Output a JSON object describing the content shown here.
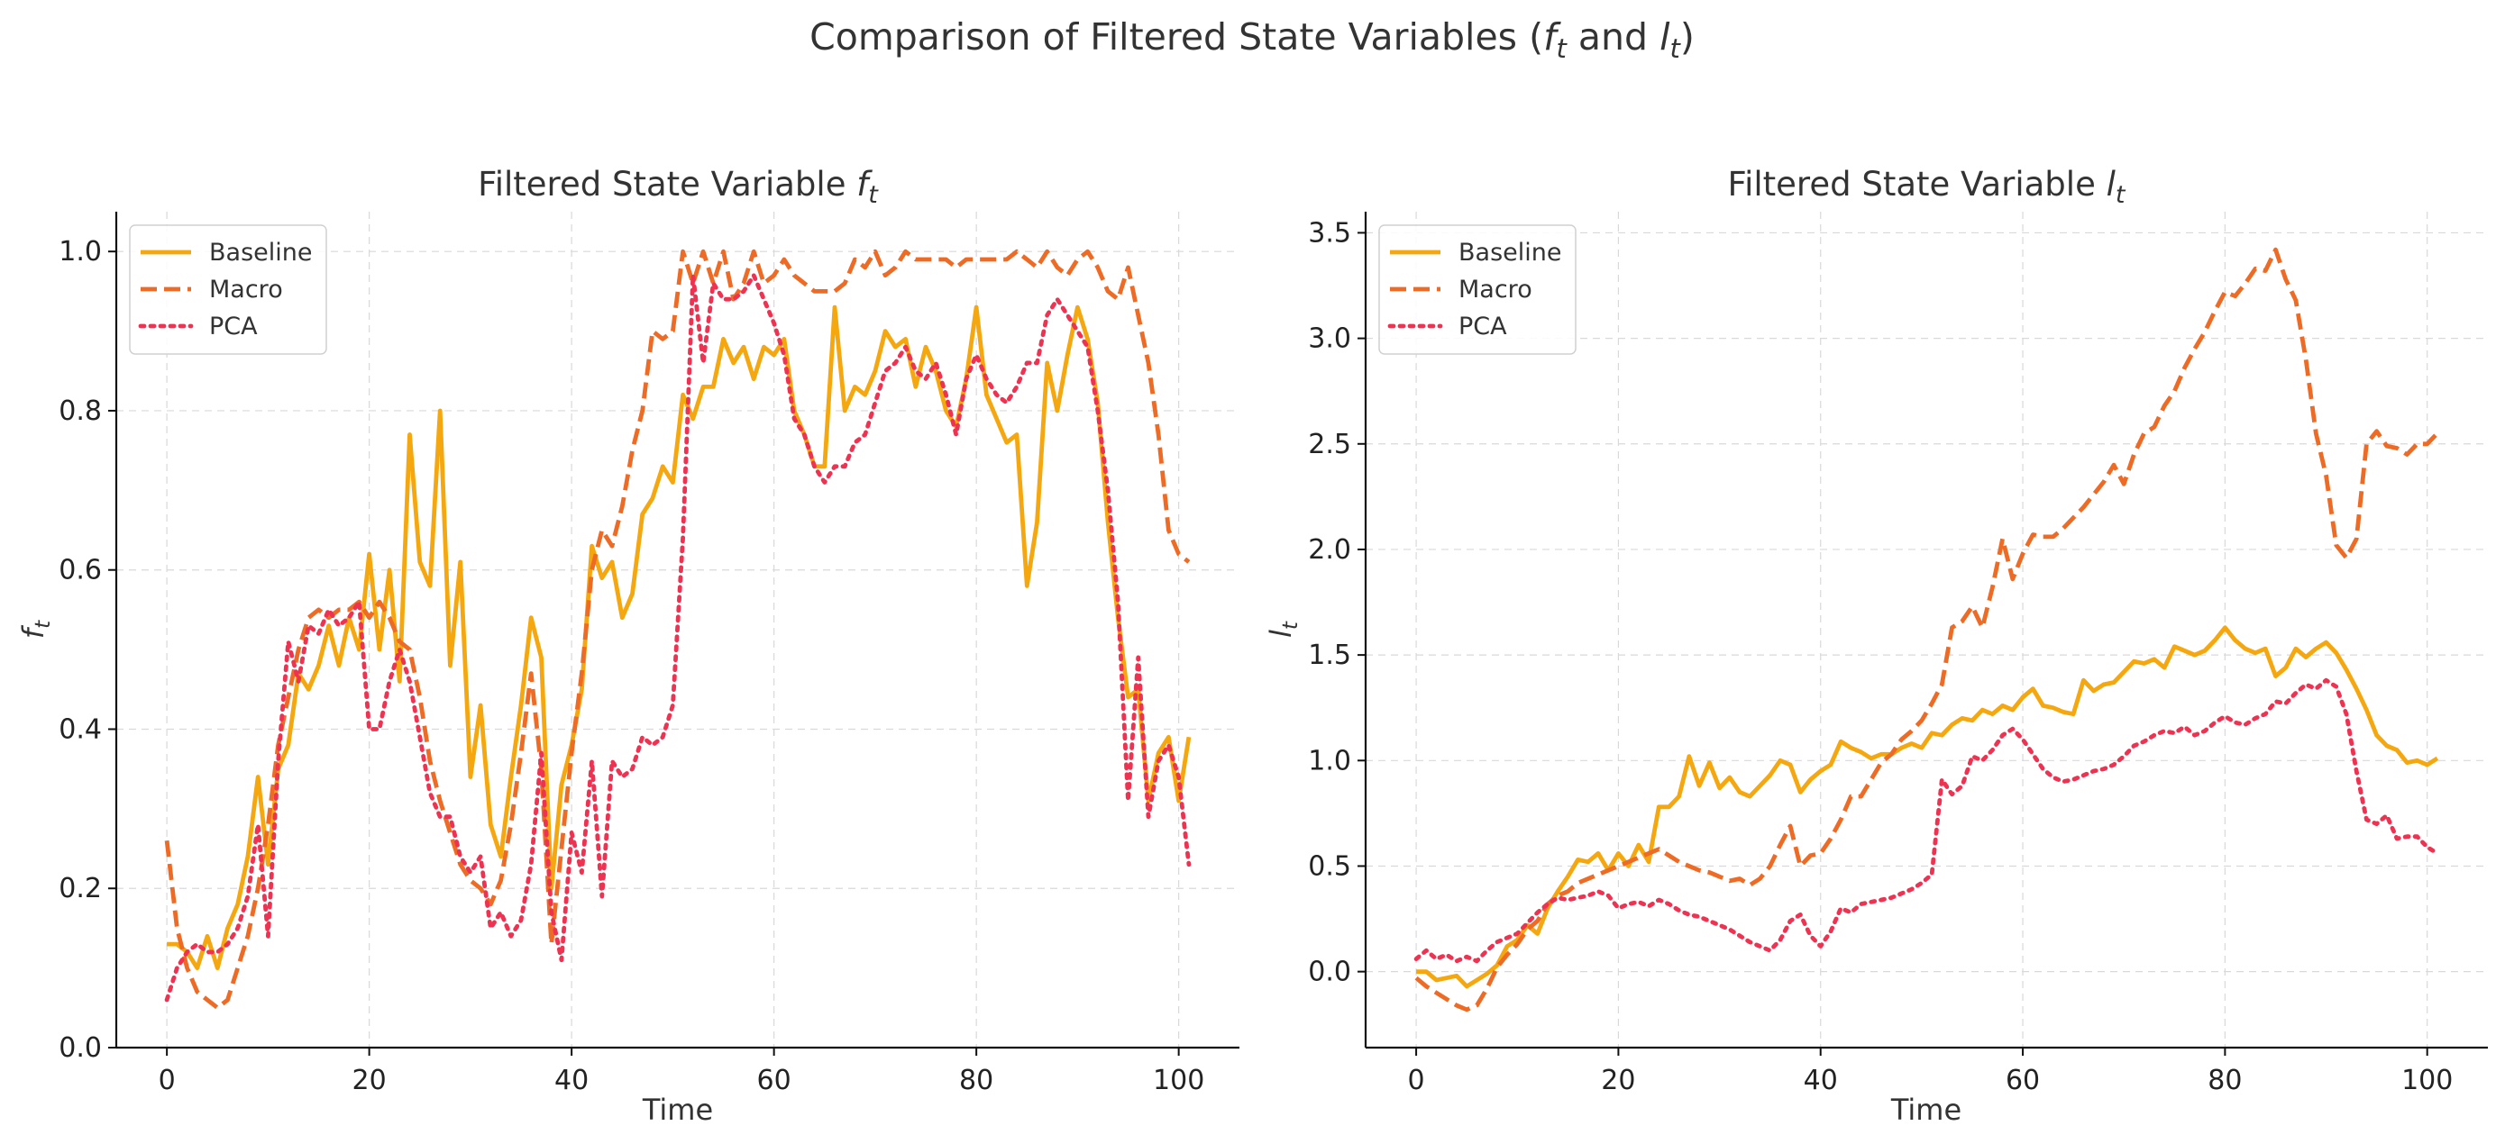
{
  "figure": {
    "suptitle_pre": "Comparison of Filtered State Variables (",
    "suptitle_f": "f",
    "suptitle_mid": " and ",
    "suptitle_l": "l",
    "suptitle_sub": "t",
    "suptitle_post": ")"
  },
  "chart_data": [
    {
      "type": "line",
      "title_pre": "Filtered State Variable ",
      "title_var": "f",
      "title_sub": "t",
      "xlabel": "Time",
      "ylabel_var": "f",
      "ylabel_sub": "t",
      "xlim": [
        -5,
        106
      ],
      "ylim": [
        0,
        1.05
      ],
      "xticks": [
        0,
        20,
        40,
        60,
        80,
        100
      ],
      "yticks": [
        0.0,
        0.2,
        0.4,
        0.6,
        0.8,
        1.0
      ],
      "ytick_labels": [
        "0.0",
        "0.2",
        "0.4",
        "0.6",
        "0.8",
        "1.0"
      ],
      "grid": true,
      "legend_position": "upper-left",
      "series": [
        {
          "name": "Baseline",
          "color": "#f5a70f",
          "style": "solid",
          "values": [
            0.13,
            0.13,
            0.12,
            0.1,
            0.14,
            0.1,
            0.15,
            0.18,
            0.24,
            0.34,
            0.23,
            0.35,
            0.38,
            0.47,
            0.45,
            0.48,
            0.53,
            0.48,
            0.54,
            0.5,
            0.62,
            0.5,
            0.6,
            0.46,
            0.77,
            0.61,
            0.58,
            0.8,
            0.48,
            0.61,
            0.34,
            0.43,
            0.28,
            0.24,
            0.34,
            0.43,
            0.54,
            0.49,
            0.2,
            0.33,
            0.38,
            0.45,
            0.63,
            0.59,
            0.61,
            0.54,
            0.57,
            0.67,
            0.69,
            0.73,
            0.71,
            0.82,
            0.79,
            0.83,
            0.83,
            0.89,
            0.86,
            0.88,
            0.84,
            0.88,
            0.87,
            0.89,
            0.8,
            0.77,
            0.73,
            0.73,
            0.93,
            0.8,
            0.83,
            0.82,
            0.85,
            0.9,
            0.88,
            0.89,
            0.83,
            0.88,
            0.85,
            0.8,
            0.78,
            0.84,
            0.93,
            0.82,
            0.79,
            0.76,
            0.77,
            0.58,
            0.66,
            0.86,
            0.8,
            0.87,
            0.93,
            0.89,
            0.81,
            0.66,
            0.54,
            0.44,
            0.45,
            0.31,
            0.37,
            0.39,
            0.31,
            0.39
          ]
        },
        {
          "name": "Macro",
          "color": "#ee6b26",
          "style": "dashed",
          "values": [
            0.26,
            0.15,
            0.1,
            0.07,
            0.06,
            0.05,
            0.06,
            0.1,
            0.14,
            0.2,
            0.28,
            0.38,
            0.44,
            0.5,
            0.54,
            0.55,
            0.54,
            0.55,
            0.55,
            0.56,
            0.54,
            0.56,
            0.54,
            0.51,
            0.5,
            0.44,
            0.36,
            0.31,
            0.27,
            0.23,
            0.21,
            0.2,
            0.18,
            0.21,
            0.28,
            0.37,
            0.47,
            0.35,
            0.13,
            0.25,
            0.37,
            0.47,
            0.6,
            0.65,
            0.63,
            0.68,
            0.75,
            0.8,
            0.9,
            0.89,
            0.9,
            1.0,
            0.96,
            1.0,
            0.96,
            1.0,
            0.94,
            0.96,
            1.0,
            0.96,
            0.97,
            0.99,
            0.97,
            0.96,
            0.95,
            0.95,
            0.95,
            0.96,
            0.99,
            0.98,
            1.0,
            0.97,
            0.98,
            1.0,
            0.99,
            0.99,
            0.99,
            0.99,
            0.98,
            0.99,
            0.99,
            0.99,
            0.99,
            0.99,
            1.0,
            0.99,
            0.98,
            1.0,
            0.98,
            0.97,
            0.99,
            1.0,
            0.98,
            0.95,
            0.94,
            0.98,
            0.92,
            0.86,
            0.77,
            0.65,
            0.62,
            0.61
          ]
        },
        {
          "name": "PCA",
          "color": "#ee3352",
          "style": "dotted",
          "values": [
            0.06,
            0.1,
            0.12,
            0.13,
            0.12,
            0.12,
            0.13,
            0.15,
            0.19,
            0.28,
            0.14,
            0.36,
            0.51,
            0.46,
            0.53,
            0.52,
            0.55,
            0.53,
            0.54,
            0.56,
            0.4,
            0.4,
            0.46,
            0.5,
            0.46,
            0.39,
            0.32,
            0.29,
            0.29,
            0.24,
            0.22,
            0.24,
            0.15,
            0.17,
            0.14,
            0.16,
            0.23,
            0.37,
            0.17,
            0.11,
            0.27,
            0.22,
            0.36,
            0.19,
            0.36,
            0.34,
            0.35,
            0.39,
            0.38,
            0.39,
            0.43,
            0.64,
            0.97,
            0.86,
            0.96,
            0.94,
            0.94,
            0.95,
            0.97,
            0.94,
            0.91,
            0.87,
            0.79,
            0.77,
            0.73,
            0.71,
            0.73,
            0.73,
            0.76,
            0.77,
            0.81,
            0.85,
            0.86,
            0.88,
            0.85,
            0.84,
            0.86,
            0.82,
            0.77,
            0.84,
            0.87,
            0.84,
            0.82,
            0.81,
            0.83,
            0.86,
            0.86,
            0.92,
            0.94,
            0.92,
            0.9,
            0.88,
            0.8,
            0.7,
            0.56,
            0.31,
            0.49,
            0.29,
            0.36,
            0.38,
            0.34,
            0.23
          ]
        }
      ]
    },
    {
      "type": "line",
      "title_pre": "Filtered State Variable ",
      "title_var": "l",
      "title_sub": "t",
      "xlabel": "Time",
      "ylabel_var": "l",
      "ylabel_sub": "t",
      "xlim": [
        -5,
        106
      ],
      "ylim": [
        -0.36,
        3.6
      ],
      "xticks": [
        0,
        20,
        40,
        60,
        80,
        100
      ],
      "yticks": [
        0.0,
        0.5,
        1.0,
        1.5,
        2.0,
        2.5,
        3.0,
        3.5
      ],
      "ytick_labels": [
        "0.0",
        "0.5",
        "1.0",
        "1.5",
        "2.0",
        "2.5",
        "3.0",
        "3.5"
      ],
      "grid": true,
      "legend_position": "upper-left",
      "series": [
        {
          "name": "Baseline",
          "color": "#f5a70f",
          "style": "solid",
          "values": [
            0.0,
            0.0,
            -0.04,
            -0.03,
            -0.02,
            -0.07,
            -0.04,
            -0.01,
            0.03,
            0.12,
            0.15,
            0.22,
            0.18,
            0.3,
            0.38,
            0.45,
            0.53,
            0.52,
            0.56,
            0.48,
            0.56,
            0.5,
            0.6,
            0.52,
            0.78,
            0.78,
            0.83,
            1.02,
            0.88,
            0.99,
            0.87,
            0.92,
            0.85,
            0.83,
            0.88,
            0.93,
            1.0,
            0.98,
            0.85,
            0.91,
            0.95,
            0.98,
            1.09,
            1.06,
            1.04,
            1.01,
            1.03,
            1.03,
            1.06,
            1.08,
            1.06,
            1.13,
            1.12,
            1.17,
            1.2,
            1.19,
            1.24,
            1.22,
            1.26,
            1.24,
            1.3,
            1.34,
            1.26,
            1.25,
            1.23,
            1.22,
            1.38,
            1.33,
            1.36,
            1.37,
            1.42,
            1.47,
            1.46,
            1.48,
            1.44,
            1.54,
            1.52,
            1.5,
            1.52,
            1.57,
            1.63,
            1.57,
            1.53,
            1.51,
            1.53,
            1.4,
            1.44,
            1.53,
            1.49,
            1.53,
            1.56,
            1.51,
            1.43,
            1.34,
            1.24,
            1.12,
            1.07,
            1.05,
            0.99,
            1.0,
            0.98,
            1.01
          ]
        },
        {
          "name": "Macro",
          "color": "#ee6b26",
          "style": "dashed",
          "values": [
            -0.03,
            -0.07,
            -0.1,
            -0.13,
            -0.16,
            -0.18,
            -0.16,
            -0.08,
            0.02,
            0.08,
            0.13,
            0.2,
            0.24,
            0.32,
            0.36,
            0.38,
            0.42,
            0.44,
            0.46,
            0.48,
            0.5,
            0.52,
            0.54,
            0.56,
            0.58,
            0.55,
            0.52,
            0.5,
            0.48,
            0.47,
            0.45,
            0.43,
            0.44,
            0.41,
            0.44,
            0.5,
            0.6,
            0.69,
            0.5,
            0.55,
            0.56,
            0.63,
            0.72,
            0.83,
            0.83,
            0.91,
            0.99,
            1.03,
            1.1,
            1.14,
            1.19,
            1.27,
            1.36,
            1.63,
            1.66,
            1.73,
            1.63,
            1.82,
            2.05,
            1.86,
            1.98,
            2.07,
            2.06,
            2.06,
            2.1,
            2.15,
            2.2,
            2.26,
            2.32,
            2.4,
            2.31,
            2.45,
            2.55,
            2.58,
            2.68,
            2.75,
            2.86,
            2.95,
            3.03,
            3.13,
            3.22,
            3.2,
            3.26,
            3.33,
            3.32,
            3.42,
            3.28,
            3.18,
            2.9,
            2.55,
            2.35,
            2.02,
            1.96,
            2.05,
            2.5,
            2.56,
            2.49,
            2.48,
            2.45,
            2.5,
            2.5,
            2.55
          ]
        },
        {
          "name": "PCA",
          "color": "#ee3352",
          "style": "dotted",
          "values": [
            0.06,
            0.1,
            0.06,
            0.08,
            0.05,
            0.07,
            0.05,
            0.1,
            0.14,
            0.16,
            0.18,
            0.23,
            0.28,
            0.32,
            0.35,
            0.34,
            0.35,
            0.36,
            0.38,
            0.36,
            0.3,
            0.32,
            0.33,
            0.31,
            0.34,
            0.32,
            0.29,
            0.27,
            0.26,
            0.24,
            0.22,
            0.2,
            0.17,
            0.14,
            0.12,
            0.1,
            0.15,
            0.24,
            0.27,
            0.17,
            0.12,
            0.19,
            0.3,
            0.28,
            0.32,
            0.33,
            0.34,
            0.35,
            0.37,
            0.39,
            0.42,
            0.46,
            0.91,
            0.84,
            0.88,
            1.02,
            1.0,
            1.05,
            1.12,
            1.15,
            1.1,
            1.03,
            0.96,
            0.92,
            0.9,
            0.91,
            0.93,
            0.95,
            0.96,
            0.98,
            1.02,
            1.07,
            1.09,
            1.12,
            1.14,
            1.13,
            1.16,
            1.12,
            1.14,
            1.18,
            1.21,
            1.18,
            1.17,
            1.2,
            1.22,
            1.28,
            1.27,
            1.32,
            1.36,
            1.34,
            1.38,
            1.35,
            1.22,
            0.95,
            0.72,
            0.7,
            0.74,
            0.63,
            0.64,
            0.64,
            0.59,
            0.56
          ]
        }
      ]
    }
  ]
}
